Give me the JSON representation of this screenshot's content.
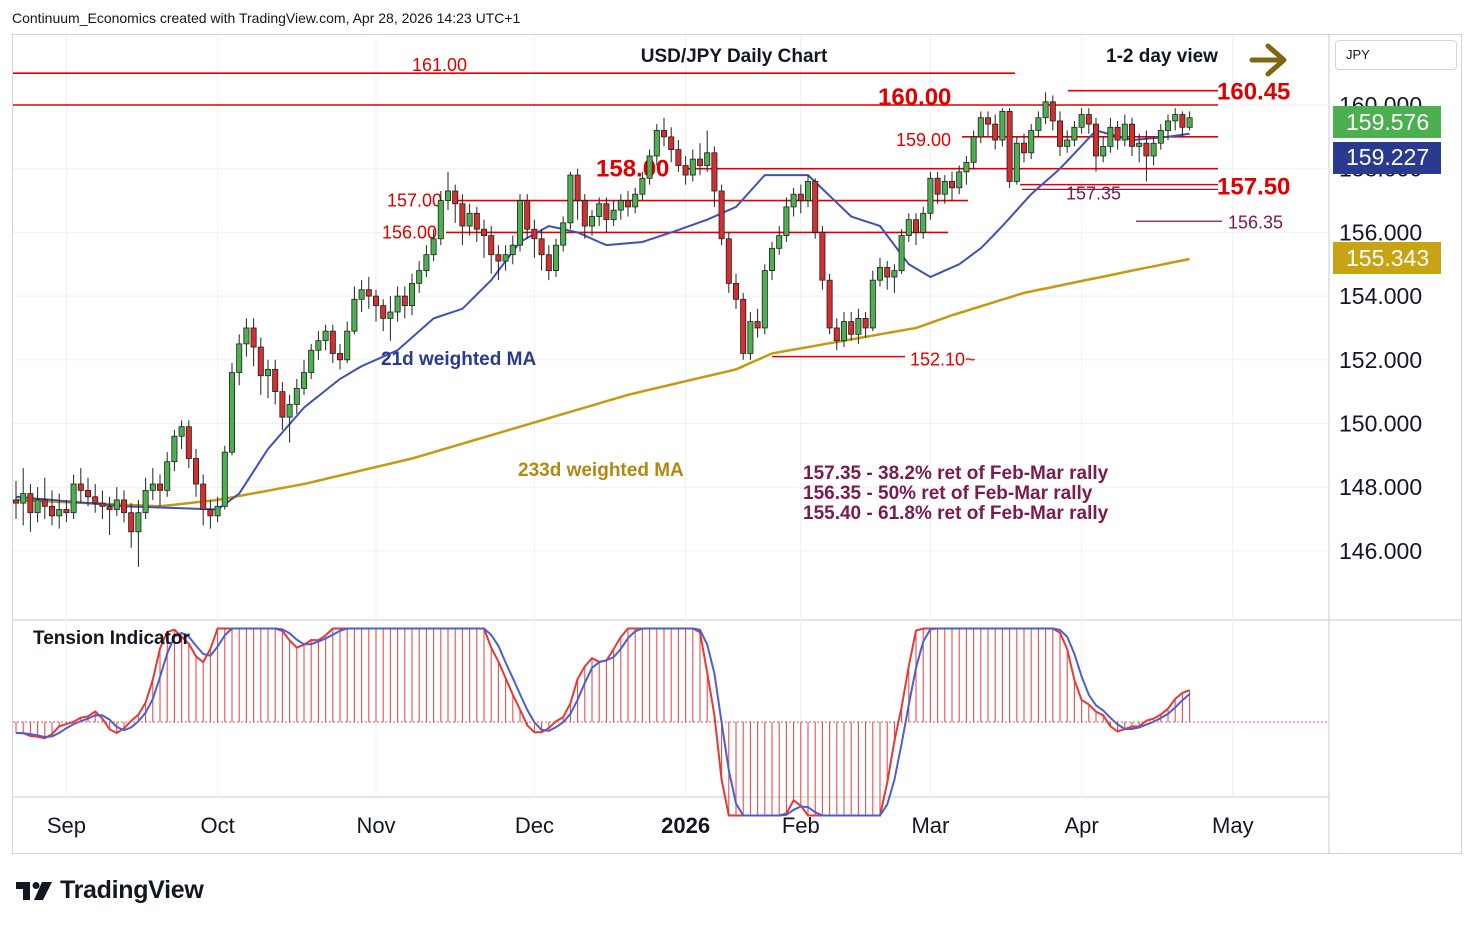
{
  "header": {
    "attribution": "Continuum_Economics created with TradingView.com, Apr 28, 2026 14:23 UTC+1"
  },
  "currency": "JPY",
  "logo": {
    "text": "TradingView"
  },
  "chart_data": {
    "type": "candlestick",
    "title": "USD/JPY Daily Chart",
    "view": "1-2 day view",
    "view_arrow": "right-arrow-icon",
    "ylim": [
      144.0,
      162.5
    ],
    "y_ticks": [
      "146.000",
      "148.000",
      "150.000",
      "152.000",
      "154.000",
      "156.000",
      "158.000",
      "160.000"
    ],
    "x_ticks": [
      "Sep",
      "Oct",
      "Nov",
      "Dec",
      "2026",
      "Feb",
      "Mar",
      "Apr",
      "May"
    ],
    "price_badges": [
      {
        "value": "159.576",
        "color": "#4caf50"
      },
      {
        "value": "159.227",
        "color": "#2a3b8f"
      },
      {
        "value": "155.343",
        "color": "#c8a415"
      }
    ],
    "ma_labels": {
      "ma21": "21d weighted MA",
      "ma233": "233d weighted MA"
    },
    "colors": {
      "up": "#4caf50",
      "down": "#d32f2f",
      "ma21": "#3f51b5",
      "ma233": "#c49a10",
      "levels": "#e00000",
      "fib": "#7b1a4e"
    },
    "levels": [
      {
        "label": "161.00",
        "value": 161.0
      },
      {
        "label": "160.45",
        "value": 160.45
      },
      {
        "label": "160.00",
        "value": 160.0
      },
      {
        "label": "159.00",
        "value": 159.0
      },
      {
        "label": "158.00",
        "value": 158.0
      },
      {
        "label": "157.50",
        "value": 157.5
      },
      {
        "label": "157.00",
        "value": 157.0
      },
      {
        "label": "156.00",
        "value": 156.0
      },
      {
        "label": "152.10~",
        "value": 152.1
      }
    ],
    "fib_levels": [
      {
        "label": "157.35",
        "value": 157.35
      },
      {
        "label": "156.35",
        "value": 156.35
      }
    ],
    "fib_notes": [
      "157.35 - 38.2% ret of Feb-Mar rally",
      "156.35 - 50% ret of Feb-Mar rally",
      "155.40 - 61.8% ret of Feb-Mar rally"
    ],
    "indicator": {
      "name": "Tension Indicator"
    },
    "ma21_anchors": [
      [
        0,
        147.7
      ],
      [
        15,
        147.4
      ],
      [
        28,
        147.3
      ],
      [
        31,
        147.8
      ],
      [
        35,
        149.2
      ],
      [
        40,
        150.5
      ],
      [
        45,
        151.4
      ],
      [
        48,
        151.8
      ],
      [
        53,
        152.3
      ],
      [
        58,
        153.3
      ],
      [
        62,
        153.6
      ],
      [
        66,
        154.5
      ],
      [
        70,
        155.7
      ],
      [
        74,
        156.2
      ],
      [
        78,
        156.0
      ],
      [
        82,
        155.6
      ],
      [
        87,
        155.7
      ],
      [
        91,
        156.0
      ],
      [
        96,
        156.4
      ],
      [
        100,
        156.8
      ],
      [
        104,
        157.8
      ],
      [
        110,
        157.8
      ],
      [
        116,
        156.5
      ],
      [
        120,
        156.2
      ],
      [
        124,
        155.0
      ],
      [
        127,
        154.6
      ],
      [
        131,
        155.0
      ],
      [
        134,
        155.5
      ],
      [
        137,
        156.2
      ],
      [
        141,
        157.2
      ],
      [
        145,
        158.0
      ],
      [
        150,
        159.2
      ],
      [
        155,
        158.9
      ],
      [
        160,
        159.0
      ],
      [
        166,
        159.2
      ]
    ],
    "ma233_anchors": [
      [
        0,
        147.6
      ],
      [
        20,
        147.4
      ],
      [
        28,
        147.6
      ],
      [
        40,
        148.1
      ],
      [
        55,
        148.9
      ],
      [
        70,
        149.9
      ],
      [
        85,
        150.9
      ],
      [
        100,
        151.7
      ],
      [
        105,
        152.2
      ],
      [
        115,
        152.6
      ],
      [
        125,
        153.0
      ],
      [
        130,
        153.4
      ],
      [
        140,
        154.1
      ],
      [
        155,
        154.8
      ],
      [
        166,
        155.3
      ]
    ],
    "candles": [
      [
        147.6,
        147.5,
        148.2,
        147.0
      ],
      [
        147.5,
        147.8,
        148.6,
        146.8
      ],
      [
        147.8,
        147.2,
        148.1,
        146.6
      ],
      [
        147.2,
        147.6,
        148.0,
        146.9
      ],
      [
        147.6,
        147.4,
        148.3,
        147.0
      ],
      [
        147.4,
        147.1,
        147.9,
        146.8
      ],
      [
        147.1,
        147.3,
        147.8,
        146.7
      ],
      [
        147.3,
        147.2,
        147.6,
        146.9
      ],
      [
        147.2,
        148.1,
        148.4,
        147.0
      ],
      [
        148.1,
        147.9,
        148.6,
        147.5
      ],
      [
        147.9,
        147.7,
        148.3,
        147.4
      ],
      [
        147.7,
        147.5,
        148.1,
        147.2
      ],
      [
        147.5,
        147.4,
        147.9,
        147.0
      ],
      [
        147.4,
        147.3,
        147.7,
        146.5
      ],
      [
        147.3,
        147.6,
        148.0,
        147.1
      ],
      [
        147.6,
        147.2,
        147.9,
        146.9
      ],
      [
        147.2,
        146.6,
        147.5,
        146.1
      ],
      [
        146.6,
        147.2,
        147.6,
        145.5
      ],
      [
        147.2,
        147.9,
        148.3,
        147.0
      ],
      [
        147.9,
        148.1,
        148.6,
        147.6
      ],
      [
        148.1,
        147.9,
        148.4,
        147.4
      ],
      [
        147.9,
        148.8,
        149.1,
        147.7
      ],
      [
        148.8,
        149.6,
        149.8,
        148.5
      ],
      [
        149.6,
        149.9,
        150.1,
        149.2
      ],
      [
        149.9,
        148.9,
        150.1,
        148.6
      ],
      [
        148.9,
        148.1,
        149.2,
        147.7
      ],
      [
        148.1,
        147.3,
        148.4,
        146.8
      ],
      [
        147.3,
        147.1,
        147.6,
        146.7
      ],
      [
        147.1,
        147.4,
        147.7,
        146.9
      ],
      [
        147.4,
        149.1,
        149.3,
        147.3
      ],
      [
        149.1,
        151.6,
        151.9,
        149.0
      ],
      [
        151.6,
        152.5,
        152.8,
        151.2
      ],
      [
        152.5,
        153.0,
        153.3,
        152.1
      ],
      [
        153.0,
        152.4,
        153.3,
        151.8
      ],
      [
        152.4,
        151.5,
        152.7,
        150.9
      ],
      [
        151.5,
        151.7,
        152.0,
        150.8
      ],
      [
        151.7,
        151.0,
        152.0,
        150.6
      ],
      [
        151.0,
        150.2,
        151.3,
        149.8
      ],
      [
        150.2,
        150.6,
        150.9,
        149.4
      ],
      [
        150.6,
        151.1,
        151.4,
        150.3
      ],
      [
        151.1,
        151.6,
        152.0,
        150.9
      ],
      [
        151.6,
        152.3,
        152.5,
        151.4
      ],
      [
        152.3,
        152.6,
        152.9,
        152.0
      ],
      [
        152.6,
        152.9,
        153.1,
        152.3
      ],
      [
        152.9,
        152.2,
        153.1,
        151.9
      ],
      [
        152.2,
        152.0,
        152.5,
        151.7
      ],
      [
        152.0,
        152.9,
        153.2,
        151.9
      ],
      [
        152.9,
        153.9,
        154.3,
        152.8
      ],
      [
        153.9,
        154.2,
        154.5,
        153.5
      ],
      [
        154.2,
        154.0,
        154.6,
        153.6
      ],
      [
        154.0,
        153.7,
        154.2,
        153.2
      ],
      [
        153.7,
        153.3,
        153.9,
        152.9
      ],
      [
        153.3,
        153.5,
        154.0,
        152.6
      ],
      [
        153.5,
        154.0,
        154.3,
        153.2
      ],
      [
        154.0,
        153.7,
        154.3,
        153.3
      ],
      [
        153.7,
        154.4,
        154.7,
        153.4
      ],
      [
        154.4,
        154.8,
        155.1,
        154.1
      ],
      [
        154.8,
        155.3,
        155.6,
        154.6
      ],
      [
        155.3,
        155.8,
        156.1,
        155.1
      ],
      [
        155.8,
        157.0,
        157.3,
        155.6
      ],
      [
        157.0,
        157.3,
        157.9,
        156.7
      ],
      [
        157.3,
        156.9,
        157.5,
        156.3
      ],
      [
        156.9,
        156.2,
        157.2,
        155.6
      ],
      [
        156.2,
        156.6,
        156.9,
        155.9
      ],
      [
        156.6,
        156.1,
        156.8,
        155.7
      ],
      [
        156.1,
        155.9,
        156.4,
        155.2
      ],
      [
        155.9,
        155.3,
        156.2,
        154.7
      ],
      [
        155.3,
        155.1,
        155.6,
        154.5
      ],
      [
        155.1,
        155.3,
        155.6,
        154.8
      ],
      [
        155.3,
        155.6,
        155.9,
        155.0
      ],
      [
        155.6,
        157.0,
        157.2,
        155.4
      ],
      [
        157.0,
        156.1,
        157.2,
        155.8
      ],
      [
        156.1,
        155.8,
        156.4,
        155.2
      ],
      [
        155.8,
        155.3,
        156.1,
        154.8
      ],
      [
        155.3,
        154.8,
        155.6,
        154.5
      ],
      [
        154.8,
        155.6,
        155.8,
        154.6
      ],
      [
        155.6,
        156.3,
        156.5,
        155.4
      ],
      [
        156.3,
        157.8,
        157.9,
        156.1
      ],
      [
        157.8,
        157.0,
        158.0,
        156.4
      ],
      [
        157.0,
        156.2,
        157.2,
        155.8
      ],
      [
        156.2,
        156.5,
        156.7,
        155.9
      ],
      [
        156.5,
        156.9,
        157.1,
        156.2
      ],
      [
        156.9,
        156.4,
        157.1,
        156.0
      ],
      [
        156.4,
        156.7,
        157.0,
        156.2
      ],
      [
        156.7,
        157.0,
        157.2,
        156.4
      ],
      [
        157.0,
        156.8,
        157.3,
        156.5
      ],
      [
        156.8,
        157.2,
        157.4,
        156.6
      ],
      [
        157.2,
        157.7,
        157.9,
        157.0
      ],
      [
        157.7,
        158.4,
        158.6,
        157.5
      ],
      [
        158.4,
        159.2,
        159.4,
        158.1
      ],
      [
        159.2,
        159.0,
        159.6,
        158.7
      ],
      [
        159.0,
        158.6,
        159.3,
        158.2
      ],
      [
        158.6,
        158.1,
        158.9,
        157.9
      ],
      [
        158.1,
        157.8,
        158.4,
        157.5
      ],
      [
        157.8,
        158.3,
        158.6,
        157.6
      ],
      [
        158.3,
        158.1,
        158.8,
        157.8
      ],
      [
        158.1,
        158.5,
        159.2,
        157.9
      ],
      [
        158.5,
        157.3,
        158.7,
        156.8
      ],
      [
        157.3,
        155.8,
        157.5,
        155.6
      ],
      [
        155.8,
        154.4,
        156.0,
        154.1
      ],
      [
        154.4,
        153.9,
        154.7,
        153.6
      ],
      [
        153.9,
        152.2,
        154.1,
        152.0
      ],
      [
        152.2,
        153.2,
        153.5,
        152.0
      ],
      [
        153.2,
        153.0,
        153.6,
        152.7
      ],
      [
        153.0,
        154.8,
        155.0,
        152.8
      ],
      [
        154.8,
        155.5,
        155.7,
        154.5
      ],
      [
        155.5,
        155.9,
        156.2,
        155.3
      ],
      [
        155.9,
        156.8,
        157.1,
        155.7
      ],
      [
        156.8,
        157.2,
        157.4,
        156.5
      ],
      [
        157.2,
        157.0,
        157.5,
        156.6
      ],
      [
        157.0,
        157.6,
        157.8,
        156.8
      ],
      [
        157.6,
        156.0,
        157.7,
        155.8
      ],
      [
        156.0,
        154.5,
        156.2,
        154.2
      ],
      [
        154.5,
        153.0,
        154.7,
        152.8
      ],
      [
        153.0,
        152.6,
        153.3,
        152.3
      ],
      [
        152.6,
        153.2,
        153.5,
        152.4
      ],
      [
        153.2,
        152.8,
        153.5,
        152.6
      ],
      [
        152.8,
        153.3,
        153.6,
        152.5
      ],
      [
        153.3,
        153.0,
        153.5,
        152.7
      ],
      [
        153.0,
        154.5,
        154.8,
        152.9
      ],
      [
        154.5,
        154.9,
        155.2,
        154.3
      ],
      [
        154.9,
        154.6,
        155.1,
        154.2
      ],
      [
        154.6,
        154.8,
        155.0,
        154.1
      ],
      [
        154.8,
        155.9,
        156.1,
        154.7
      ],
      [
        155.9,
        156.4,
        156.6,
        155.7
      ],
      [
        156.4,
        156.0,
        156.6,
        155.6
      ],
      [
        156.0,
        156.6,
        156.8,
        155.8
      ],
      [
        156.6,
        157.7,
        157.9,
        156.4
      ],
      [
        157.7,
        157.2,
        157.9,
        156.9
      ],
      [
        157.2,
        157.6,
        157.8,
        156.9
      ],
      [
        157.6,
        157.4,
        157.9,
        157.0
      ],
      [
        157.4,
        157.9,
        158.1,
        157.2
      ],
      [
        157.9,
        158.2,
        158.4,
        157.5
      ],
      [
        158.2,
        159.0,
        159.2,
        158.0
      ],
      [
        159.0,
        159.6,
        159.8,
        158.8
      ],
      [
        159.6,
        159.4,
        159.8,
        159.0
      ],
      [
        159.4,
        158.9,
        159.7,
        158.6
      ],
      [
        158.9,
        159.8,
        159.9,
        158.7
      ],
      [
        159.8,
        157.6,
        159.9,
        157.4
      ],
      [
        157.6,
        158.8,
        159.0,
        157.5
      ],
      [
        158.8,
        158.5,
        159.1,
        158.2
      ],
      [
        158.5,
        159.2,
        159.4,
        158.3
      ],
      [
        159.2,
        159.6,
        159.8,
        159.0
      ],
      [
        159.6,
        160.1,
        160.4,
        159.4
      ],
      [
        160.1,
        159.5,
        160.3,
        159.2
      ],
      [
        159.5,
        158.7,
        159.8,
        158.4
      ],
      [
        158.7,
        158.9,
        159.2,
        158.5
      ],
      [
        158.9,
        159.3,
        159.5,
        158.7
      ],
      [
        159.3,
        159.7,
        159.9,
        159.1
      ],
      [
        159.7,
        159.4,
        159.9,
        159.1
      ],
      [
        159.4,
        158.4,
        159.6,
        157.9
      ],
      [
        158.4,
        158.7,
        159.0,
        158.2
      ],
      [
        158.7,
        159.3,
        159.6,
        158.5
      ],
      [
        159.3,
        158.9,
        159.5,
        158.6
      ],
      [
        158.9,
        159.4,
        159.7,
        158.7
      ],
      [
        159.4,
        158.7,
        159.6,
        158.4
      ],
      [
        158.7,
        158.8,
        159.1,
        158.2
      ],
      [
        158.8,
        158.4,
        159.2,
        157.6
      ],
      [
        158.4,
        158.8,
        159.0,
        158.1
      ],
      [
        158.8,
        159.2,
        159.4,
        158.6
      ],
      [
        159.2,
        159.5,
        159.7,
        158.9
      ],
      [
        159.5,
        159.7,
        159.9,
        159.2
      ],
      [
        159.7,
        159.3,
        159.8,
        159.0
      ],
      [
        159.3,
        159.6,
        159.8,
        159.2
      ]
    ]
  }
}
